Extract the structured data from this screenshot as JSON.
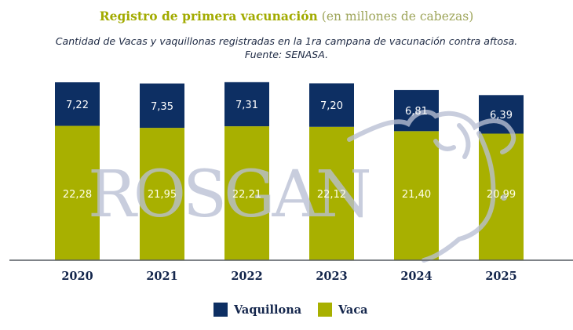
{
  "colors": {
    "vaquillona": "#0d2f63",
    "vaca": "#a8b000",
    "title_accent": "#a2ab00",
    "axis": "#555a60",
    "watermark": "#b9c0d4",
    "year_label": "#14264c"
  },
  "header": {
    "title_bold": "Registro de primera vacunación",
    "title_light": "(en millones de cabezas)",
    "subtitle_line1": "Cantidad de Vacas y vaquillonas registradas en la 1ra campana de vacunación contra aftosa.",
    "subtitle_line2": "Fuente: SENASA."
  },
  "watermark": {
    "text": "ROSGAN",
    "icon": "cow-head-icon"
  },
  "chart_data": {
    "type": "bar",
    "stacked": true,
    "title": "Registro de primera vacunación (en millones de cabezas)",
    "subtitle": "Cantidad de Vacas y vaquillonas registradas en la 1ra campana de vacunación contra aftosa. Fuente: SENASA.",
    "xlabel": "",
    "ylabel": "",
    "categories": [
      "2020",
      "2021",
      "2022",
      "2023",
      "2024",
      "2025"
    ],
    "series": [
      {
        "name": "Vaca",
        "values": [
          22.28,
          21.95,
          22.21,
          22.12,
          21.4,
          20.99
        ],
        "labels": [
          "22,28",
          "21,95",
          "22,21",
          "22,12",
          "21,40",
          "20,99"
        ]
      },
      {
        "name": "Vaquillona",
        "values": [
          7.22,
          7.35,
          7.31,
          7.2,
          6.81,
          6.39
        ],
        "labels": [
          "7,22",
          "7,35",
          "7,31",
          "7,20",
          "6,81",
          "6,39"
        ]
      }
    ],
    "ylim": [
      0,
      29.5
    ],
    "grid": false,
    "y_axis_visible": false,
    "legend": {
      "position": "bottom-center",
      "entries": [
        "Vaquillona",
        "Vaca"
      ]
    }
  }
}
